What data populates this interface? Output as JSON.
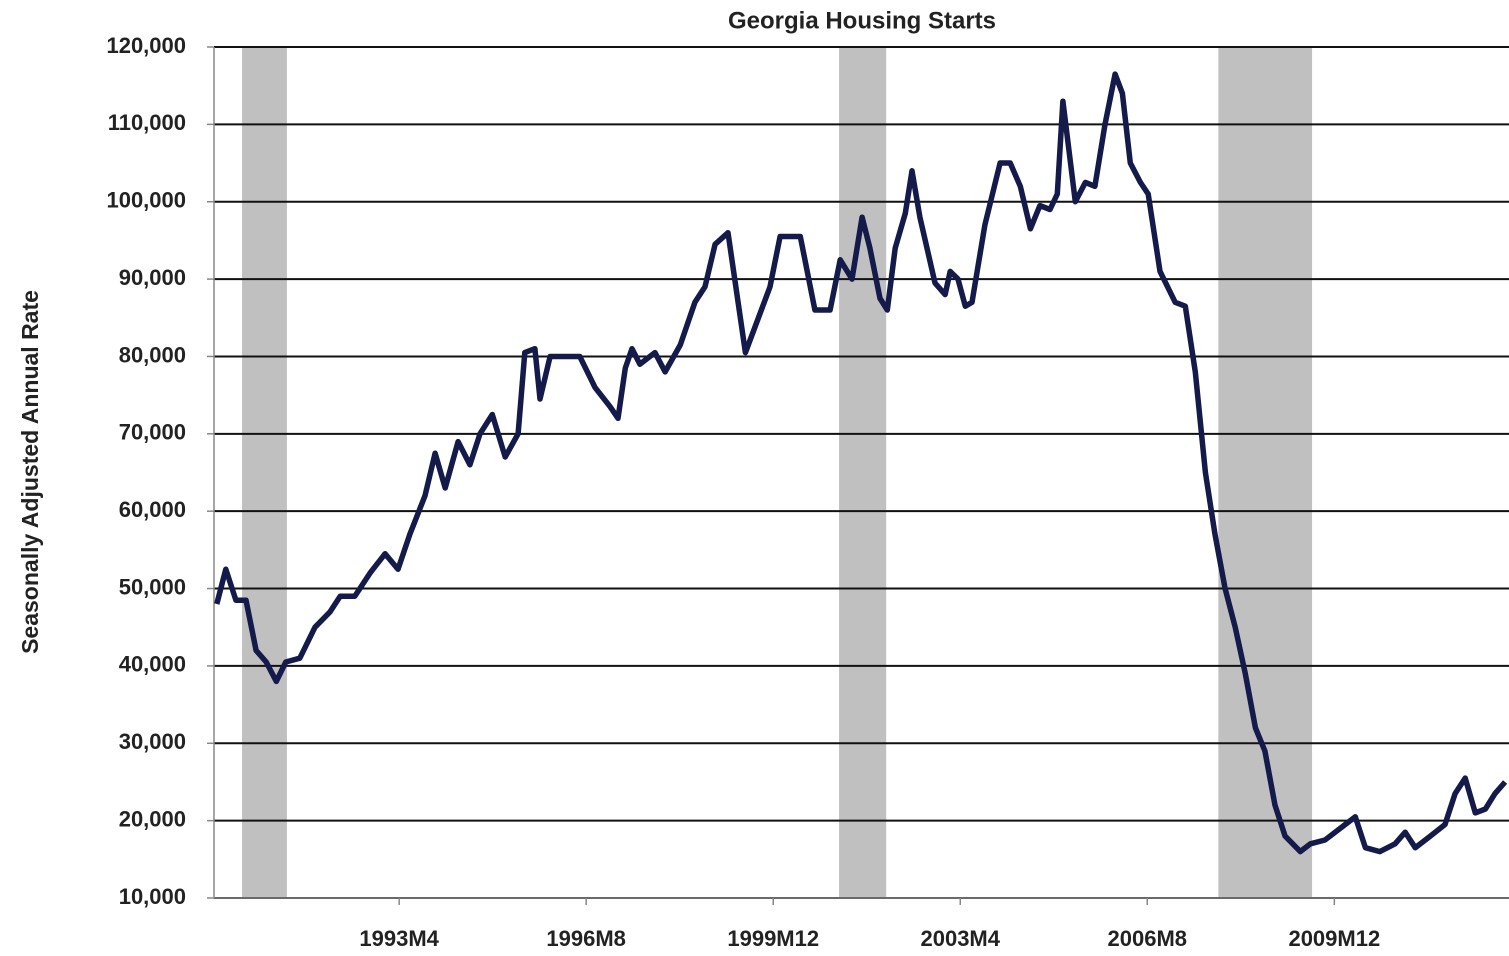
{
  "chart_data": {
    "type": "line",
    "title": "Georgia Housing Starts",
    "y_label": "Seasonally Adjusted Annual Rate",
    "x": [
      1990.0,
      1990.16,
      1990.34,
      1990.52,
      1990.7,
      1990.88,
      1991.06,
      1991.23,
      1991.48,
      1991.75,
      1992.02,
      1992.2,
      1992.46,
      1992.73,
      1993.0,
      1993.23,
      1993.44,
      1993.71,
      1993.89,
      1994.07,
      1994.3,
      1994.51,
      1994.69,
      1994.91,
      1995.14,
      1995.37,
      1995.49,
      1995.67,
      1995.76,
      1995.94,
      1996.21,
      1996.47,
      1996.74,
      1997.01,
      1997.15,
      1997.28,
      1997.4,
      1997.54,
      1997.81,
      1997.99,
      1998.26,
      1998.52,
      1998.7,
      1998.88,
      1999.11,
      1999.42,
      1999.68,
      1999.86,
      2000.04,
      2000.22,
      2000.4,
      2000.66,
      2000.93,
      2001.11,
      2001.32,
      2001.5,
      2001.64,
      2001.82,
      2001.95,
      2002.09,
      2002.27,
      2002.39,
      2002.53,
      2002.8,
      2002.98,
      2003.07,
      2003.21,
      2003.34,
      2003.46,
      2003.69,
      2003.96,
      2004.14,
      2004.32,
      2004.5,
      2004.67,
      2004.85,
      2004.98,
      2005.08,
      2005.3,
      2005.48,
      2005.65,
      2005.83,
      2006.01,
      2006.14,
      2006.28,
      2006.46,
      2006.6,
      2006.81,
      2007.08,
      2007.26,
      2007.44,
      2007.62,
      2007.79,
      2007.97,
      2008.15,
      2008.33,
      2008.51,
      2008.68,
      2008.86,
      2009.04,
      2009.31,
      2009.49,
      2009.75,
      2010.02,
      2010.29,
      2010.47,
      2010.73,
      2011.0,
      2011.18,
      2011.36,
      2011.63,
      2011.89,
      2012.07,
      2012.25,
      2012.43,
      2012.61,
      2012.78,
      2012.96
    ],
    "series": [
      {
        "color": "#141a4a",
        "values": [
          48000,
          52500,
          48500,
          48500,
          42000,
          40500,
          38000,
          40500,
          41000,
          45000,
          47000,
          49000,
          49000,
          52000,
          54500,
          52500,
          57000,
          62000,
          67500,
          63000,
          69000,
          66000,
          70000,
          72500,
          67000,
          70000,
          80500,
          81000,
          74500,
          80000,
          80000,
          80000,
          76000,
          73500,
          72000,
          78500,
          81000,
          79000,
          80500,
          78000,
          81500,
          87000,
          89000,
          94500,
          96000,
          80500,
          85500,
          89000,
          95500,
          95500,
          95500,
          86000,
          86000,
          92500,
          90000,
          98000,
          94000,
          87500,
          86000,
          94000,
          98500,
          104000,
          98000,
          89500,
          88000,
          91000,
          90000,
          86500,
          87000,
          97000,
          105000,
          105000,
          102000,
          96500,
          99500,
          99000,
          101000,
          113000,
          100000,
          102500,
          102000,
          110000,
          116500,
          114000,
          105000,
          102500,
          101000,
          91000,
          87000,
          86500,
          78000,
          65000,
          57000,
          50000,
          45000,
          39000,
          32000,
          29000,
          22000,
          18000,
          16000,
          17000,
          17500,
          19000,
          20500,
          16500,
          16000,
          17000,
          18500,
          16500,
          18000,
          19500,
          23500,
          25500,
          21000,
          21500,
          23500,
          25000
        ]
      }
    ],
    "shaded_ranges": [
      [
        1990.45,
        1991.25
      ],
      [
        2001.09,
        2001.93
      ],
      [
        2007.85,
        2009.52
      ]
    ],
    "shade_color": "#c0c0c0",
    "xlim": [
      1989.95,
      2013.03
    ],
    "xticks": [
      {
        "value": 1993.25,
        "label": "1993M4"
      },
      {
        "value": 1996.583,
        "label": "1996M8"
      },
      {
        "value": 1999.917,
        "label": "1999M12"
      },
      {
        "value": 2003.25,
        "label": "2003M4"
      },
      {
        "value": 2006.583,
        "label": "2006M8"
      },
      {
        "value": 2009.917,
        "label": "2009M12"
      }
    ],
    "ylim": [
      10000,
      120000
    ],
    "yticks": [
      {
        "value": 10000,
        "label": "10,000"
      },
      {
        "value": 20000,
        "label": "20,000"
      },
      {
        "value": 30000,
        "label": "30,000"
      },
      {
        "value": 40000,
        "label": "40,000"
      },
      {
        "value": 50000,
        "label": "50,000"
      },
      {
        "value": 60000,
        "label": "60,000"
      },
      {
        "value": 70000,
        "label": "70,000"
      },
      {
        "value": 80000,
        "label": "80,000"
      },
      {
        "value": 90000,
        "label": "90,000"
      },
      {
        "value": 100000,
        "label": "100,000"
      },
      {
        "value": 110000,
        "label": "110,000"
      },
      {
        "value": 120000,
        "label": "120,000"
      }
    ],
    "grid": true
  }
}
